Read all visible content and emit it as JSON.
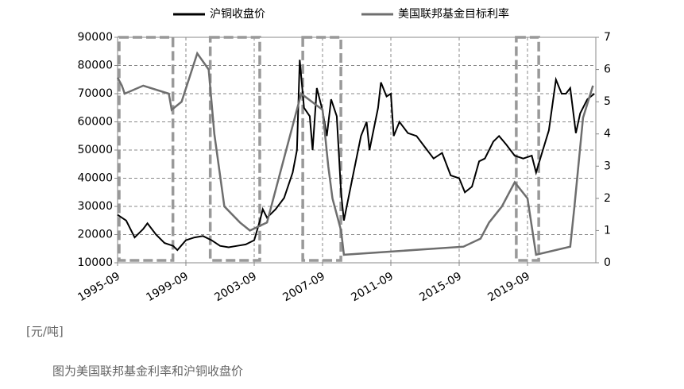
{
  "chart_data": {
    "type": "line",
    "y_unit_label": "[元/吨]",
    "caption": "图为美国联邦基金利率和沪铜收盘价",
    "xlim": [
      "1995-09",
      "2023-09"
    ],
    "xticks": [
      "1995-09",
      "1999-09",
      "2003-09",
      "2007-09",
      "2011-09",
      "2015-09",
      "2019-09"
    ],
    "ylim": [
      10000,
      90000
    ],
    "yticks": [
      10000,
      20000,
      30000,
      40000,
      50000,
      60000,
      70000,
      80000,
      90000
    ],
    "y2lim": [
      0,
      7
    ],
    "y2ticks": [
      0,
      1,
      2,
      3,
      4,
      5,
      6,
      7
    ],
    "grid": true,
    "legend": "top",
    "highlight_periods": [
      [
        "1995-09",
        "1999-01"
      ],
      [
        "2001-01",
        "2004-02"
      ],
      [
        "2006-06",
        "2008-11"
      ],
      [
        "2018-12",
        "2020-06"
      ]
    ],
    "series": [
      {
        "name": "沪铜收盘价",
        "color": "#000000",
        "axis": "y",
        "x": [
          "1995-09",
          "1996-03",
          "1996-09",
          "1997-03",
          "1997-06",
          "1997-12",
          "1998-06",
          "1998-12",
          "1999-03",
          "1999-09",
          "2000-03",
          "2000-09",
          "2001-03",
          "2001-09",
          "2002-03",
          "2002-09",
          "2003-03",
          "2003-09",
          "2004-01",
          "2004-03",
          "2004-06",
          "2004-12",
          "2005-06",
          "2005-12",
          "2006-03",
          "2006-05",
          "2006-08",
          "2006-12",
          "2007-02",
          "2007-05",
          "2007-09",
          "2007-12",
          "2008-03",
          "2008-07",
          "2008-10",
          "2008-12",
          "2009-06",
          "2009-12",
          "2010-04",
          "2010-06",
          "2010-12",
          "2011-02",
          "2011-06",
          "2011-09",
          "2011-11",
          "2012-03",
          "2012-09",
          "2013-03",
          "2013-09",
          "2014-03",
          "2014-09",
          "2015-03",
          "2015-09",
          "2016-01",
          "2016-06",
          "2016-11",
          "2017-03",
          "2017-09",
          "2018-01",
          "2018-06",
          "2018-12",
          "2019-06",
          "2019-12",
          "2020-03",
          "2020-06",
          "2020-12",
          "2021-05",
          "2021-09",
          "2021-12",
          "2022-03",
          "2022-07",
          "2022-10",
          "2023-03",
          "2023-08"
        ],
        "values": [
          27000,
          25000,
          19000,
          22000,
          24000,
          20000,
          17000,
          16000,
          14500,
          18000,
          19000,
          19500,
          18000,
          16000,
          15500,
          16000,
          16500,
          18000,
          25000,
          29000,
          26000,
          29000,
          33000,
          42000,
          50000,
          82000,
          65000,
          62000,
          50000,
          72000,
          64000,
          55000,
          68000,
          62000,
          35000,
          25000,
          40000,
          55000,
          60000,
          50000,
          65000,
          74000,
          69000,
          70000,
          55000,
          60000,
          56000,
          55000,
          51000,
          47000,
          49000,
          41000,
          40000,
          35000,
          37000,
          46000,
          47000,
          53000,
          55000,
          52000,
          48000,
          47000,
          48000,
          42000,
          47000,
          57000,
          75000,
          70000,
          70000,
          72000,
          56000,
          63000,
          68000,
          70000
        ]
      },
      {
        "name": "美国联邦基金目标利率",
        "color": "#6e6e6e",
        "axis": "y2",
        "x": [
          "1995-09",
          "1995-12",
          "1996-02",
          "1997-03",
          "1998-09",
          "1998-10",
          "1998-11",
          "1999-06",
          "2000-05",
          "2001-01",
          "2001-05",
          "2001-12",
          "2002-11",
          "2003-06",
          "2004-06",
          "2005-06",
          "2006-06",
          "2007-09",
          "2008-01",
          "2008-04",
          "2008-10",
          "2008-12",
          "2015-12",
          "2016-12",
          "2017-06",
          "2018-03",
          "2018-12",
          "2019-09",
          "2020-03",
          "2022-03",
          "2022-06",
          "2022-12",
          "2023-07"
        ],
        "values": [
          5.75,
          5.5,
          5.25,
          5.5,
          5.25,
          5.0,
          4.75,
          5.0,
          6.5,
          6.0,
          4.0,
          1.75,
          1.25,
          1.0,
          1.25,
          3.25,
          5.25,
          4.75,
          3.0,
          2.0,
          1.0,
          0.25,
          0.5,
          0.75,
          1.25,
          1.75,
          2.5,
          2.0,
          0.25,
          0.5,
          1.75,
          4.5,
          5.5
        ]
      }
    ]
  }
}
